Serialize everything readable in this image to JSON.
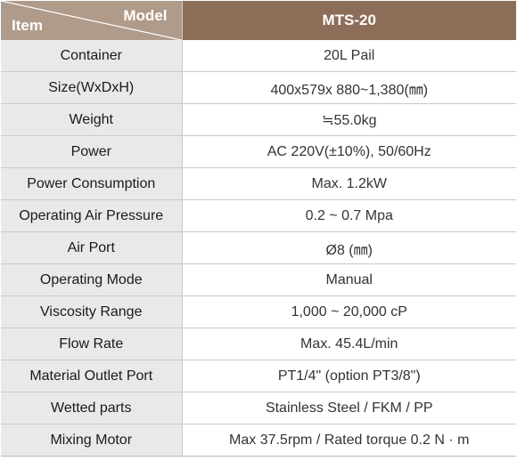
{
  "header": {
    "item_label": "Item",
    "model_label": "Model",
    "model_value": "MTS-20"
  },
  "colors": {
    "header_corner_bg": "#b09a89",
    "header_model_bg": "#8c6e58",
    "item_column_bg": "#e9e9e9",
    "value_column_bg": "#ffffff",
    "row_border": "#c9c9c9"
  },
  "rows": [
    {
      "item": "Container",
      "value": "20L Pail"
    },
    {
      "item": "Size(WxDxH)",
      "value": "400x579x 880~1,380(㎜)"
    },
    {
      "item": "Weight",
      "value": "≒55.0kg"
    },
    {
      "item": "Power",
      "value": "AC 220V(±10%), 50/60Hz"
    },
    {
      "item": "Power Consumption",
      "value": "Max. 1.2kW"
    },
    {
      "item": "Operating Air Pressure",
      "value": "0.2 ~ 0.7 Mpa"
    },
    {
      "item": "Air Port",
      "value": "Ø8 (㎜)"
    },
    {
      "item": "Operating Mode",
      "value": "Manual"
    },
    {
      "item": "Viscosity Range",
      "value": "1,000 ~ 20,000 cP"
    },
    {
      "item": "Flow Rate",
      "value": "Max. 45.4L/min"
    },
    {
      "item": "Material Outlet Port",
      "value": "PT1/4\" (option PT3/8\")"
    },
    {
      "item": "Wetted parts",
      "value": "Stainless Steel / FKM / PP"
    },
    {
      "item": "Mixing Motor",
      "value": "Max 37.5rpm / Rated torque 0.2 N · m"
    }
  ]
}
